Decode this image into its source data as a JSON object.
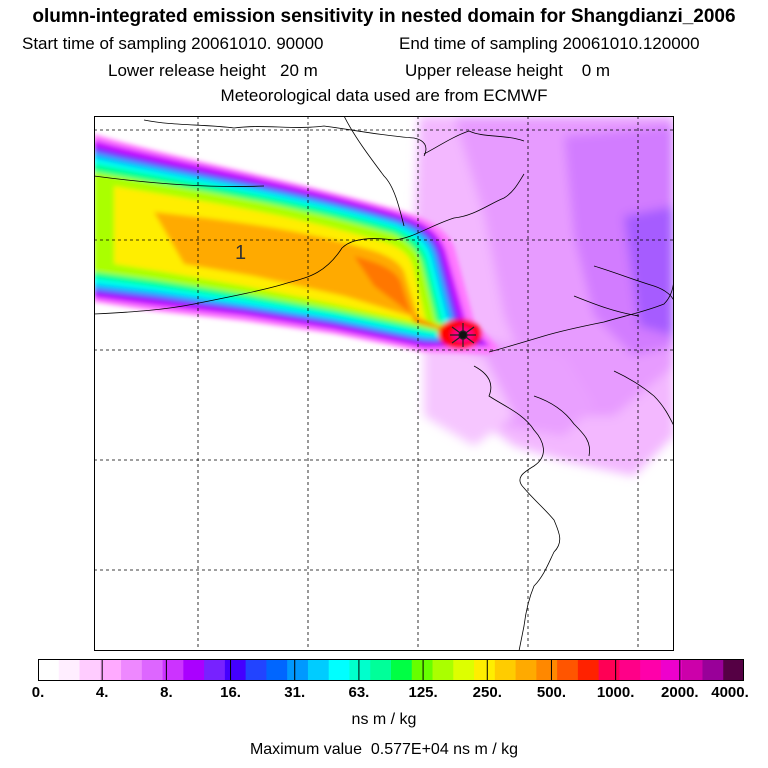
{
  "header": {
    "title": "olumn-integrated emission sensitivity in nested domain for Shangdianzi_2006",
    "start": "Start time of sampling 20061010. 90000",
    "end": "End time of sampling 20061010.120000",
    "lower": "Lower release height   20 m",
    "upper": "Upper release height    0 m",
    "met": "Meteorological data used are from ECMWF"
  },
  "map": {
    "label": "1",
    "plume_colors": [
      "#ff77ff",
      "#cc00ff",
      "#7733ff",
      "#00aaff",
      "#00ffee",
      "#00ff88",
      "#aaff00",
      "#ffee00",
      "#ffaa00",
      "#ff7700",
      "#ff0000",
      "#ff0088"
    ]
  },
  "colorbar": {
    "colors": [
      "#ffffff",
      "#ffeeff",
      "#ffccff",
      "#ffaaff",
      "#ee88ff",
      "#dd66ff",
      "#cc33ff",
      "#aa00ff",
      "#7722ff",
      "#4400ff",
      "#2244ff",
      "#0066ff",
      "#0099ff",
      "#00ccff",
      "#00ffff",
      "#00ffcc",
      "#00ff99",
      "#00ff44",
      "#66ff00",
      "#aaff00",
      "#ddff00",
      "#ffee00",
      "#ffcc00",
      "#ffaa00",
      "#ff8800",
      "#ff5500",
      "#ff2200",
      "#ff0055",
      "#ff0088",
      "#ff00aa",
      "#ee00cc",
      "#cc00aa",
      "#990099",
      "#550044"
    ],
    "ticks": [
      "0.",
      "4.",
      "8.",
      "16.",
      "31.",
      "63.",
      "125.",
      "250.",
      "500.",
      "1000.",
      "2000.",
      "4000."
    ],
    "units": "ns m / kg",
    "max_value": "Maximum value  0.577E+04 ns m / kg"
  }
}
